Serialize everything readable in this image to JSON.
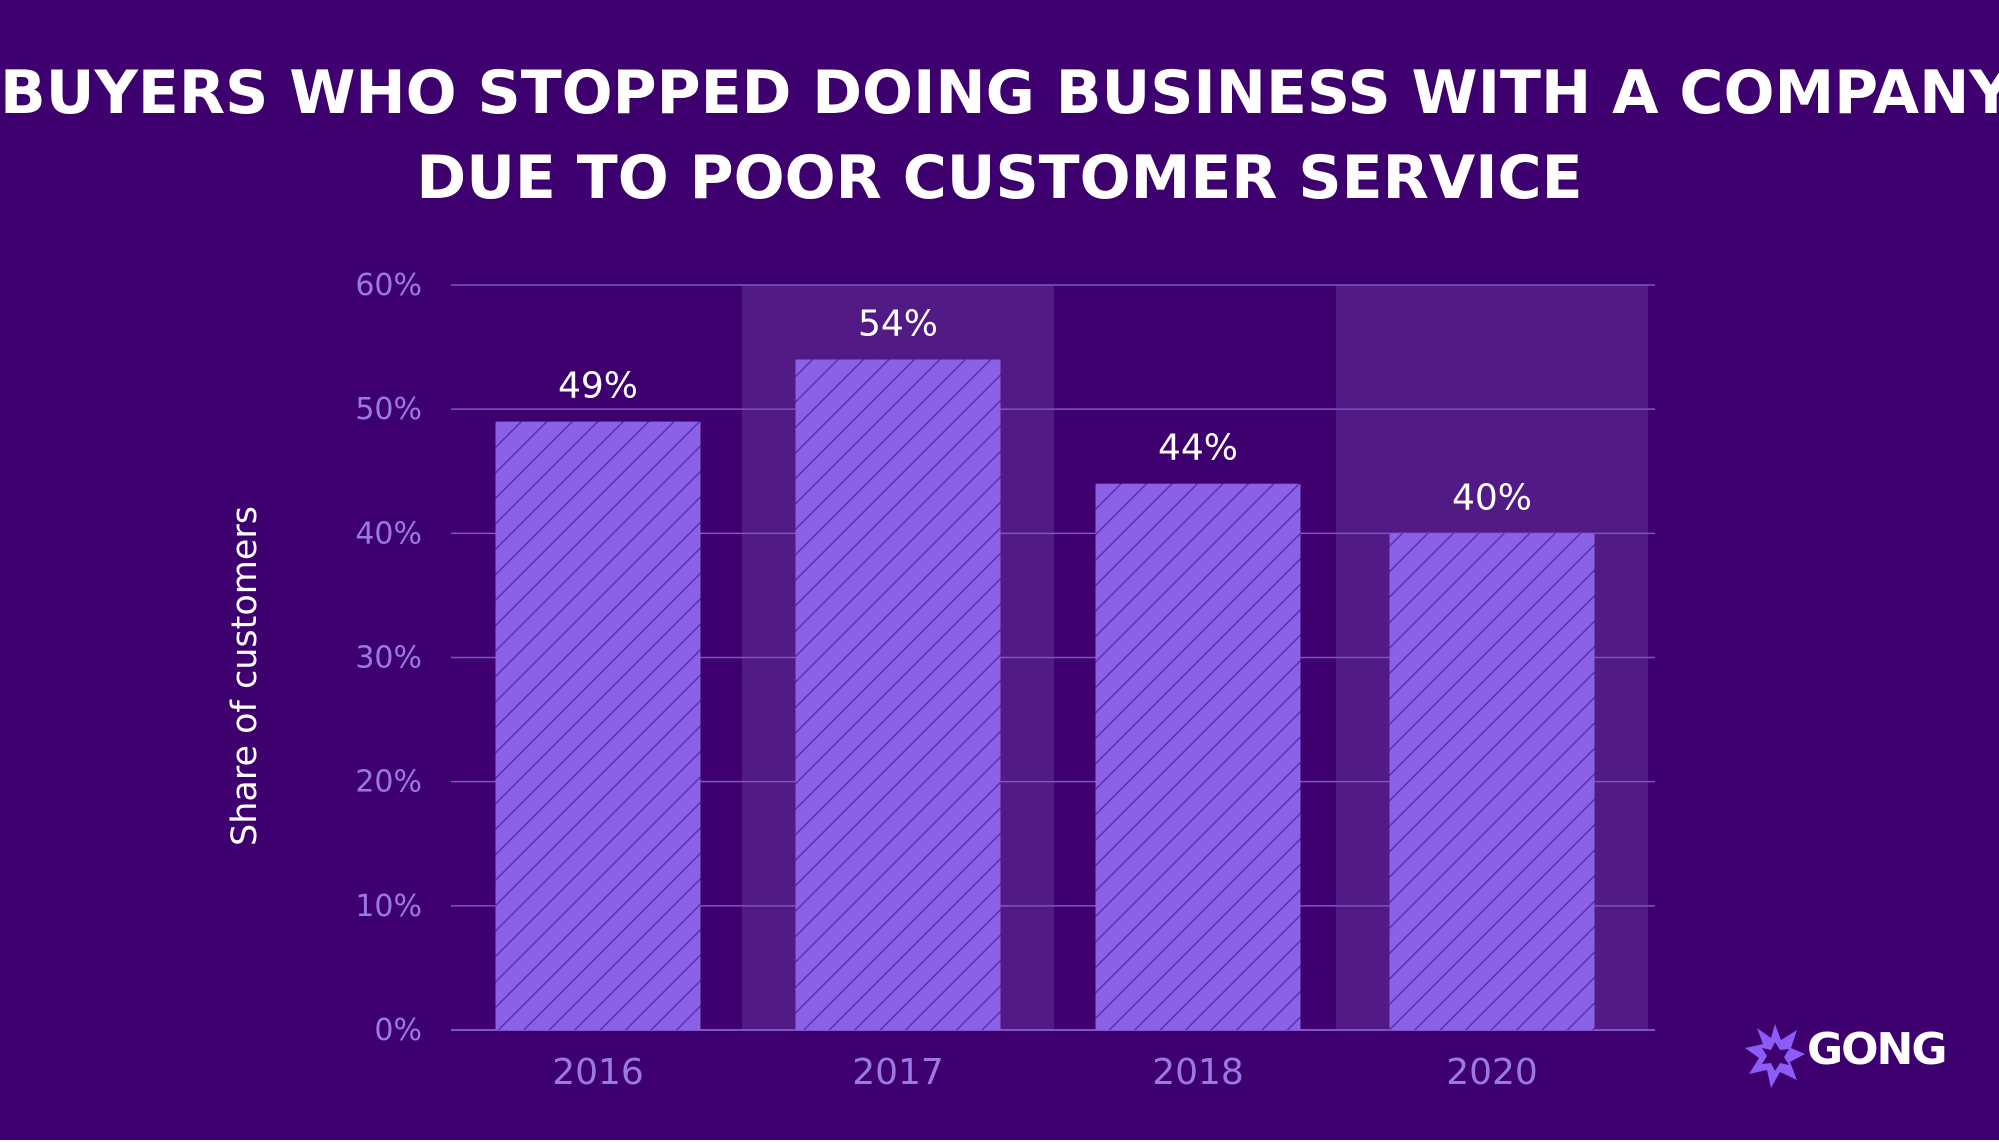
{
  "title_lines": [
    "BUYERS WHO STOPPED DOING BUSINESS WITH A COMPANY",
    "DUE TO POOR CUSTOMER SERVICE"
  ],
  "logo": {
    "text": "GONG",
    "icon": "starburst-icon"
  },
  "colors": {
    "background": "#3d006e",
    "bar_fill": "#8b62e6",
    "bar_hatch": "#5a2fb8",
    "band_highlight": "#521a85",
    "gridline": "#7c55c8",
    "tick_label": "#9a78e6",
    "data_label": "#ffffff",
    "axis_title": "#ffffff",
    "logo_icon": "#8b5cf6"
  },
  "chart_data": {
    "type": "bar",
    "title": "BUYERS WHO STOPPED DOING BUSINESS WITH A COMPANY DUE TO POOR CUSTOMER SERVICE",
    "categories": [
      "2016",
      "2017",
      "2018",
      "2020"
    ],
    "values": [
      49,
      54,
      44,
      40
    ],
    "data_labels": [
      "49%",
      "54%",
      "44%",
      "40%"
    ],
    "xlabel": "",
    "ylabel": "Share of customers",
    "ylim": [
      0,
      60
    ],
    "yticks": [
      0,
      10,
      20,
      30,
      40,
      50,
      60
    ],
    "ytick_labels": [
      "0%",
      "10%",
      "20%",
      "30%",
      "40%",
      "50%",
      "60%"
    ],
    "grid": true,
    "legend": "none",
    "highlighted_categories": [
      "2017",
      "2020"
    ]
  }
}
